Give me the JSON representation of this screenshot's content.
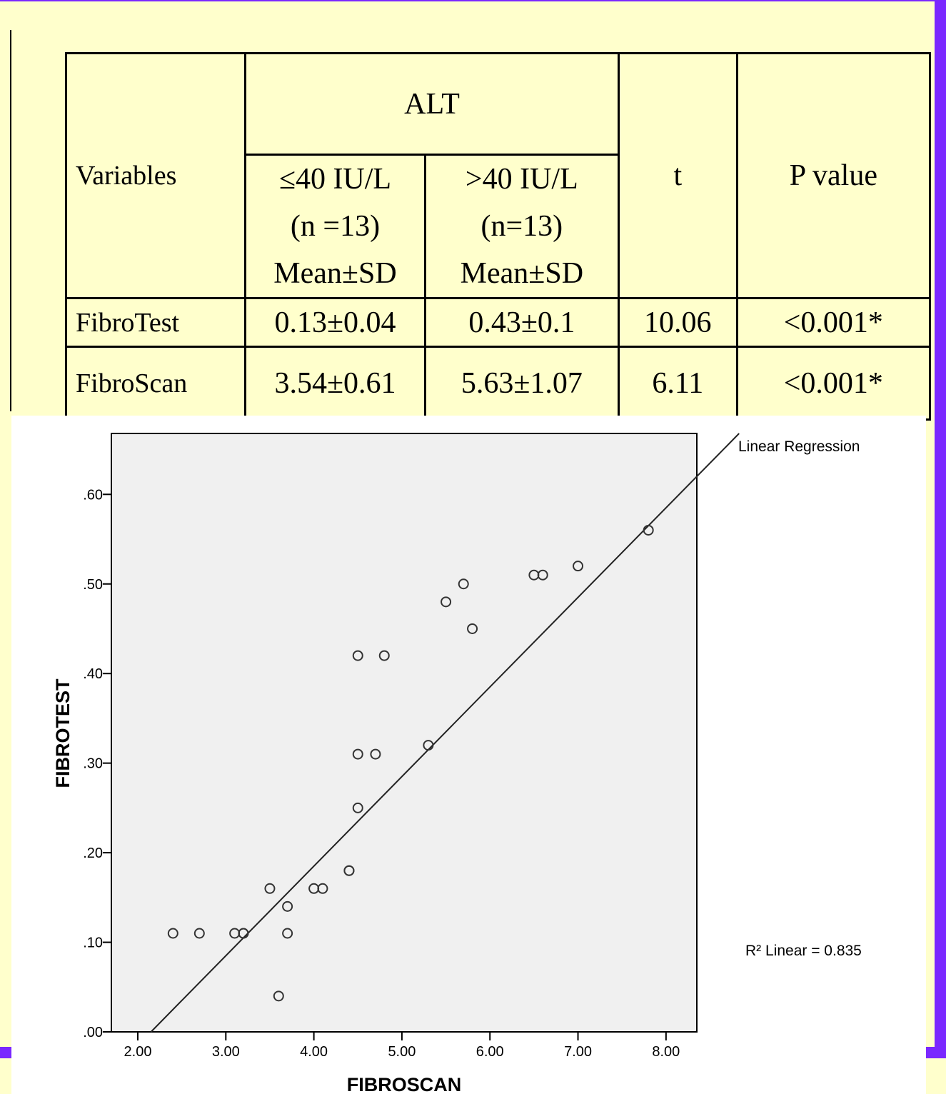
{
  "table": {
    "headers": {
      "variables": "Variables",
      "alt": "ALT",
      "low_group": [
        "≤40 IU/L",
        "(n =13)",
        "Mean±SD"
      ],
      "high_group": [
        ">40 IU/L",
        "(n=13)",
        "Mean±SD"
      ],
      "t": "t",
      "p_value": "P value"
    },
    "rows": [
      {
        "variable": "FibroTest",
        "low": "0.13±0.04",
        "high": "0.43±0.1",
        "t": "10.06",
        "p": "<0.001*"
      },
      {
        "variable": "FibroScan",
        "low": "3.54±0.61",
        "high": "5.63±1.07",
        "t": "6.11",
        "p": "<0.001*"
      }
    ]
  },
  "chart_data": {
    "type": "scatter",
    "xlabel": "FIBROSCAN",
    "ylabel": "FIBROTEST",
    "xlim": [
      1.7,
      8.35
    ],
    "ylim": [
      0.0,
      0.668
    ],
    "xticks": [
      "2.00",
      "3.00",
      "4.00",
      "5.00",
      "6.00",
      "7.00",
      "8.00"
    ],
    "yticks": [
      ".00",
      ".10",
      ".20",
      ".30",
      ".40",
      ".50",
      ".60"
    ],
    "legend_title": "Linear Regression",
    "r2_label": "R² Linear = 0.835",
    "series": [
      {
        "x": [
          2.4,
          2.7,
          3.1,
          3.2,
          3.2,
          3.5,
          3.6,
          3.7,
          3.7,
          4.0,
          4.1,
          4.4,
          4.4,
          4.5,
          4.5,
          4.5,
          4.7,
          4.8,
          5.3,
          5.5,
          5.7,
          5.8,
          6.5,
          6.6,
          7.0,
          7.8
        ],
        "y": [
          0.11,
          0.11,
          0.11,
          0.11,
          0.11,
          0.16,
          0.04,
          0.14,
          0.11,
          0.16,
          0.16,
          0.18,
          0.18,
          0.42,
          0.31,
          0.25,
          0.31,
          0.42,
          0.32,
          0.48,
          0.5,
          0.45,
          0.51,
          0.51,
          0.52,
          0.56
        ]
      }
    ],
    "fit_line": {
      "slope": 0.1,
      "intercept": -0.215
    },
    "colors": {
      "plot_background": "#f0f0f0",
      "marker": "#333333",
      "line": "#222222"
    }
  }
}
